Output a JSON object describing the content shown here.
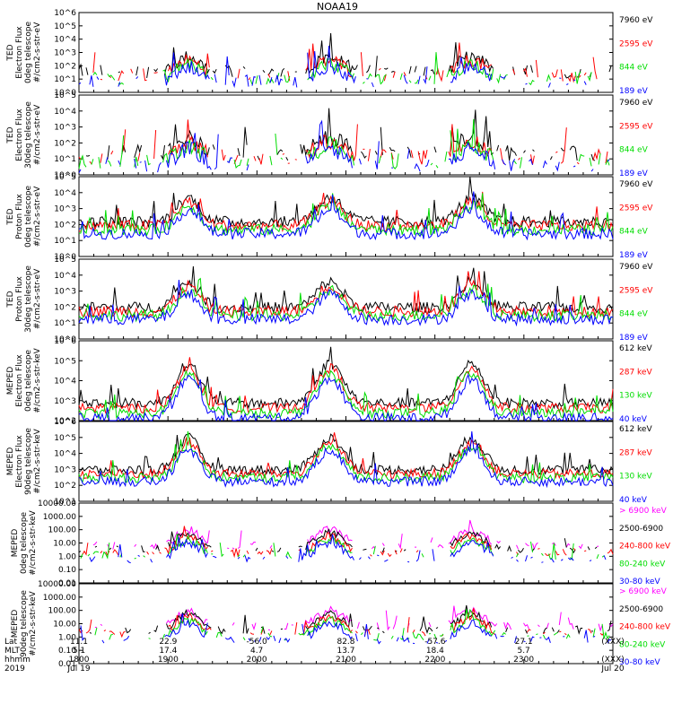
{
  "title": "NOAA19",
  "colors": {
    "black": "#000000",
    "red": "#ff0000",
    "green": "#00dd00",
    "blue": "#0000ff",
    "magenta": "#ff00ff"
  },
  "chart_data": [
    {
      "type": "line",
      "ylabel": [
        "TED",
        "Electron Flux",
        "0deg telescope",
        "#/cm2-s-str-eV"
      ],
      "scale": "log",
      "ylim": [
        1,
        1000000
      ],
      "ytick_labels": [
        "10^0",
        "10^1",
        "10^2",
        "10^3",
        "10^4",
        "10^5",
        "10^6"
      ],
      "legend": [
        {
          "label": "7960 eV",
          "color": "#000000"
        },
        {
          "label": "2595 eV",
          "color": "#ff0000"
        },
        {
          "label": "844 eV",
          "color": "#00dd00"
        },
        {
          "label": "189 eV",
          "color": "#0000ff"
        }
      ],
      "profile": {
        "peak": 2.3,
        "base": 1.2,
        "noise": 1.0,
        "sparse": true
      }
    },
    {
      "type": "line",
      "ylabel": [
        "TED",
        "Electron Flux",
        "30deg telescope",
        "#/cm2-s-str-eV"
      ],
      "scale": "log",
      "ylim": [
        1,
        100000
      ],
      "ytick_labels": [
        "10^0",
        "10^1",
        "10^2",
        "10^3",
        "10^4",
        "10^5"
      ],
      "legend": [
        {
          "label": "7960 eV",
          "color": "#000000"
        },
        {
          "label": "2595 eV",
          "color": "#ff0000"
        },
        {
          "label": "844 eV",
          "color": "#00dd00"
        },
        {
          "label": "189 eV",
          "color": "#0000ff"
        }
      ],
      "profile": {
        "peak": 2.0,
        "base": 1.0,
        "noise": 1.0,
        "sparse": true
      }
    },
    {
      "type": "line",
      "ylabel": [
        "TED",
        "Proton Flux",
        "0deg telescope",
        "#/cm2-s-str-eV"
      ],
      "scale": "log",
      "ylim": [
        1,
        100000
      ],
      "ytick_labels": [
        "10^0",
        "10^1",
        "10^2",
        "10^3",
        "10^4",
        "10^5"
      ],
      "legend": [
        {
          "label": "7960 eV",
          "color": "#000000"
        },
        {
          "label": "2595 eV",
          "color": "#ff0000"
        },
        {
          "label": "844 eV",
          "color": "#00dd00"
        },
        {
          "label": "189 eV",
          "color": "#0000ff"
        }
      ],
      "profile": {
        "peak": 3.3,
        "base": 1.8,
        "noise": 0.7,
        "sparse": false
      }
    },
    {
      "type": "line",
      "ylabel": [
        "TED",
        "Proton Flux",
        "30deg telescope",
        "#/cm2-s-str-eV"
      ],
      "scale": "log",
      "ylim": [
        1,
        100000
      ],
      "ytick_labels": [
        "10^0",
        "10^1",
        "10^2",
        "10^3",
        "10^4",
        "10^5"
      ],
      "legend": [
        {
          "label": "7960 eV",
          "color": "#000000"
        },
        {
          "label": "2595 eV",
          "color": "#ff0000"
        },
        {
          "label": "844 eV",
          "color": "#00dd00"
        },
        {
          "label": "189 eV",
          "color": "#0000ff"
        }
      ],
      "profile": {
        "peak": 3.2,
        "base": 1.6,
        "noise": 0.7,
        "sparse": false
      }
    },
    {
      "type": "line",
      "ylabel": [
        "MEPED",
        "Electron Flux",
        "0deg telescope",
        "#/cm2-s-str-keV"
      ],
      "scale": "log",
      "ylim": [
        100,
        1000000
      ],
      "ytick_labels": [
        "10^2",
        "10^3",
        "10^4",
        "10^5",
        "10^6"
      ],
      "legend": [
        {
          "label": "612 keV",
          "color": "#000000"
        },
        {
          "label": "287 keV",
          "color": "#ff0000"
        },
        {
          "label": "130 keV",
          "color": "#00dd00"
        },
        {
          "label": "40 keV",
          "color": "#0000ff"
        }
      ],
      "profile": {
        "peak": 4.5,
        "base": 2.5,
        "noise": 0.5,
        "sparse": false
      }
    },
    {
      "type": "line",
      "ylabel": [
        "MEPED",
        "Electron Flux",
        "90deg telescope",
        "#/cm2-s-str-keV"
      ],
      "scale": "log",
      "ylim": [
        10,
        1000000
      ],
      "ytick_labels": [
        "10^1",
        "10^2",
        "10^3",
        "10^4",
        "10^5",
        "10^6"
      ],
      "legend": [
        {
          "label": "612 keV",
          "color": "#000000"
        },
        {
          "label": "287 keV",
          "color": "#ff0000"
        },
        {
          "label": "130 keV",
          "color": "#00dd00"
        },
        {
          "label": "40 keV",
          "color": "#0000ff"
        }
      ],
      "profile": {
        "peak": 4.6,
        "base": 2.6,
        "noise": 0.6,
        "sparse": false
      }
    },
    {
      "type": "line",
      "ylabel": [
        "MEPED",
        "0deg telescope",
        "#/cm2-s-str-keV"
      ],
      "scale": "log",
      "ylim": [
        0.01,
        10000
      ],
      "ytick_labels": [
        "0.01",
        "0.10",
        "1.00",
        "10.00",
        "100.00",
        "1000.00",
        "10000.00"
      ],
      "legend": [
        {
          "label": "> 6900 keV",
          "color": "#ff00ff"
        },
        {
          "label": "2500-6900",
          "color": "#000000"
        },
        {
          "label": "240-800 keV",
          "color": "#ff0000"
        },
        {
          "label": "80-240 keV",
          "color": "#00dd00"
        },
        {
          "label": "30-80 keV",
          "color": "#0000ff"
        }
      ],
      "profile": {
        "peak": 1.5,
        "base": 0.3,
        "noise": 0.6,
        "sparse": true
      }
    },
    {
      "type": "line",
      "ylabel": [
        "MEPED",
        "90deg telescope",
        "#/cm2-s-str-keV"
      ],
      "scale": "log",
      "ylim": [
        0.01,
        10000
      ],
      "ytick_labels": [
        "0.01",
        "0.10",
        "1.00",
        "10.00",
        "100.00",
        "1000.00",
        "10000.00"
      ],
      "legend": [
        {
          "label": "> 6900 keV",
          "color": "#ff00ff"
        },
        {
          "label": "2500-6900",
          "color": "#000000"
        },
        {
          "label": "240-800 keV",
          "color": "#ff0000"
        },
        {
          "label": "80-240 keV",
          "color": "#00dd00"
        },
        {
          "label": "30-80 keV",
          "color": "#0000ff"
        }
      ],
      "profile": {
        "peak": 1.5,
        "base": 0.3,
        "noise": 0.6,
        "sparse": true
      }
    }
  ],
  "passes": [
    {
      "t": 0.205,
      "w": 0.03
    },
    {
      "t": 0.47,
      "w": 0.034
    },
    {
      "t": 0.735,
      "w": 0.032
    }
  ],
  "x_axis": {
    "row_labels": [
      "Lat",
      "MLT",
      "hhmm",
      "2019"
    ],
    "ticks": [
      {
        "t": 0.0,
        "values": [
          "11.1",
          "5.1",
          "1800",
          "Jul 19"
        ]
      },
      {
        "t": 0.167,
        "values": [
          "22.9",
          "17.4",
          "1900",
          ""
        ]
      },
      {
        "t": 0.333,
        "values": [
          "-56.0",
          "4.7",
          "2000",
          ""
        ]
      },
      {
        "t": 0.5,
        "values": [
          "82.8",
          "13.7",
          "2100",
          ""
        ]
      },
      {
        "t": 0.667,
        "values": [
          "-57.6",
          "18.4",
          "2200",
          ""
        ]
      },
      {
        "t": 0.833,
        "values": [
          "27.1",
          "5.7",
          "2300",
          ""
        ]
      },
      {
        "t": 1.0,
        "values": [
          "(XXX)",
          "",
          "(XXX)",
          "Jul 20"
        ]
      }
    ]
  }
}
